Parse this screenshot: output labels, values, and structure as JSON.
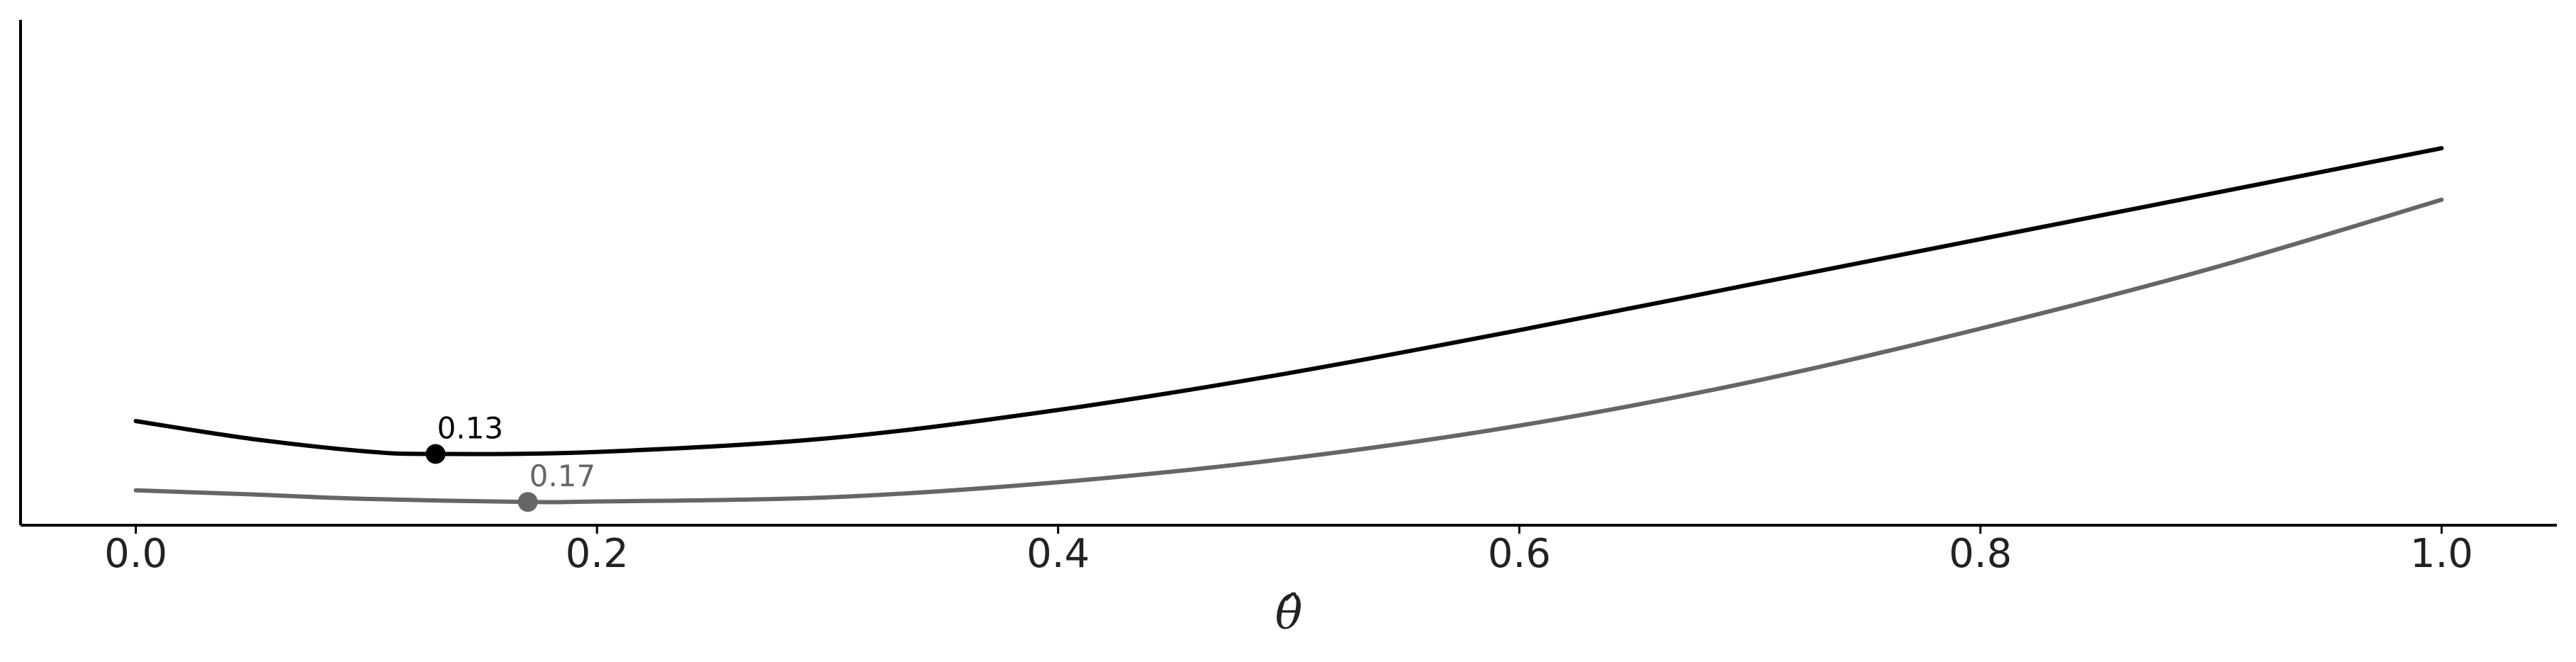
{
  "chart_data": {
    "type": "line",
    "title": "",
    "xlabel": "θ̂",
    "ylabel": "",
    "xlim": [
      -0.05,
      1.05
    ],
    "ylim": [
      0,
      1
    ],
    "x_ticks": [
      "0.0",
      "0.2",
      "0.4",
      "0.6",
      "0.8",
      "1.0"
    ],
    "x_tick_values": [
      0,
      0.2,
      0.4,
      0.6,
      0.8,
      1.0
    ],
    "grid": false,
    "legend": "none",
    "series": [
      {
        "color": "#000000",
        "x": [
          0.0,
          0.05,
          0.1,
          0.13,
          0.2,
          0.3,
          0.4,
          0.5,
          0.6,
          0.7,
          0.8,
          0.9,
          1.0
        ],
        "y": [
          0.206,
          0.171,
          0.146,
          0.141,
          0.145,
          0.172,
          0.228,
          0.301,
          0.386,
          0.476,
          0.566,
          0.656,
          0.746
        ],
        "minimum": {
          "x": 0.13,
          "label": "0.13"
        }
      },
      {
        "color": "#666666",
        "x": [
          0.0,
          0.05,
          0.1,
          0.17,
          0.2,
          0.3,
          0.4,
          0.5,
          0.6,
          0.7,
          0.8,
          0.9,
          1.0
        ],
        "y": [
          0.069,
          0.061,
          0.052,
          0.046,
          0.047,
          0.055,
          0.085,
          0.132,
          0.197,
          0.283,
          0.389,
          0.508,
          0.644
        ],
        "minimum": {
          "x": 0.17,
          "label": "0.17"
        }
      }
    ]
  }
}
